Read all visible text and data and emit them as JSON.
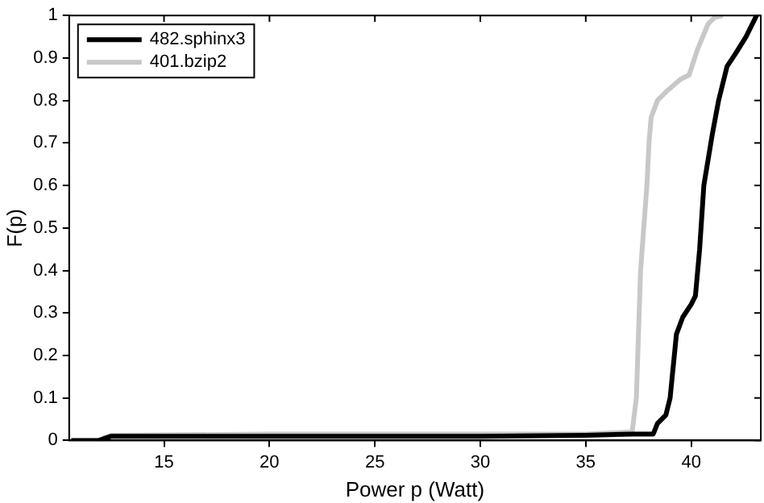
{
  "chart_data": {
    "type": "line",
    "xlabel": "Power p (Watt)",
    "ylabel": "F(p)",
    "xlim": [
      10.5,
      43.3
    ],
    "ylim": [
      0,
      1
    ],
    "xticks": [
      15,
      20,
      25,
      30,
      35,
      40
    ],
    "yticks": [
      0,
      {
        "value": 0.1,
        "label": "0.1"
      },
      {
        "value": 0.2,
        "label": "0.2"
      },
      {
        "value": 0.3,
        "label": "0.3"
      },
      {
        "value": 0.4,
        "label": "0.4"
      },
      {
        "value": 0.5,
        "label": "0.5"
      },
      {
        "value": 0.6,
        "label": "0.6"
      },
      {
        "value": 0.7,
        "label": "0.7"
      },
      {
        "value": 0.8,
        "label": "0.8"
      },
      {
        "value": 0.9,
        "label": "0.9"
      },
      1
    ],
    "grid": false,
    "legend": "top left",
    "marker": "none",
    "line_style": "solid",
    "series": [
      {
        "name": "482.sphinx3",
        "color": "#000000",
        "x": [
          10.6,
          11.9,
          12.5,
          20,
          30,
          35,
          37.2,
          38.2,
          38.4,
          38.8,
          39.0,
          39.2,
          39.3,
          39.6,
          40.0,
          40.2,
          40.4,
          40.6,
          41.0,
          41.3,
          41.7,
          42.1,
          42.6,
          43.1
        ],
        "values": [
          0,
          0,
          0.01,
          0.01,
          0.01,
          0.012,
          0.015,
          0.015,
          0.04,
          0.06,
          0.1,
          0.2,
          0.25,
          0.29,
          0.32,
          0.34,
          0.45,
          0.6,
          0.72,
          0.8,
          0.88,
          0.91,
          0.95,
          1
        ]
      },
      {
        "name": "401.bzip2",
        "color": "#c8c8c8",
        "x": [
          12.1,
          12.5,
          20,
          35,
          37.2,
          37.4,
          37.6,
          37.9,
          38.0,
          38.1,
          38.4,
          38.8,
          39.5,
          39.9,
          40.3,
          40.8,
          41.1,
          41.5
        ],
        "values": [
          0.005,
          0.012,
          0.015,
          0.015,
          0.02,
          0.1,
          0.4,
          0.6,
          0.7,
          0.76,
          0.8,
          0.82,
          0.85,
          0.86,
          0.92,
          0.98,
          0.995,
          1
        ]
      }
    ]
  }
}
